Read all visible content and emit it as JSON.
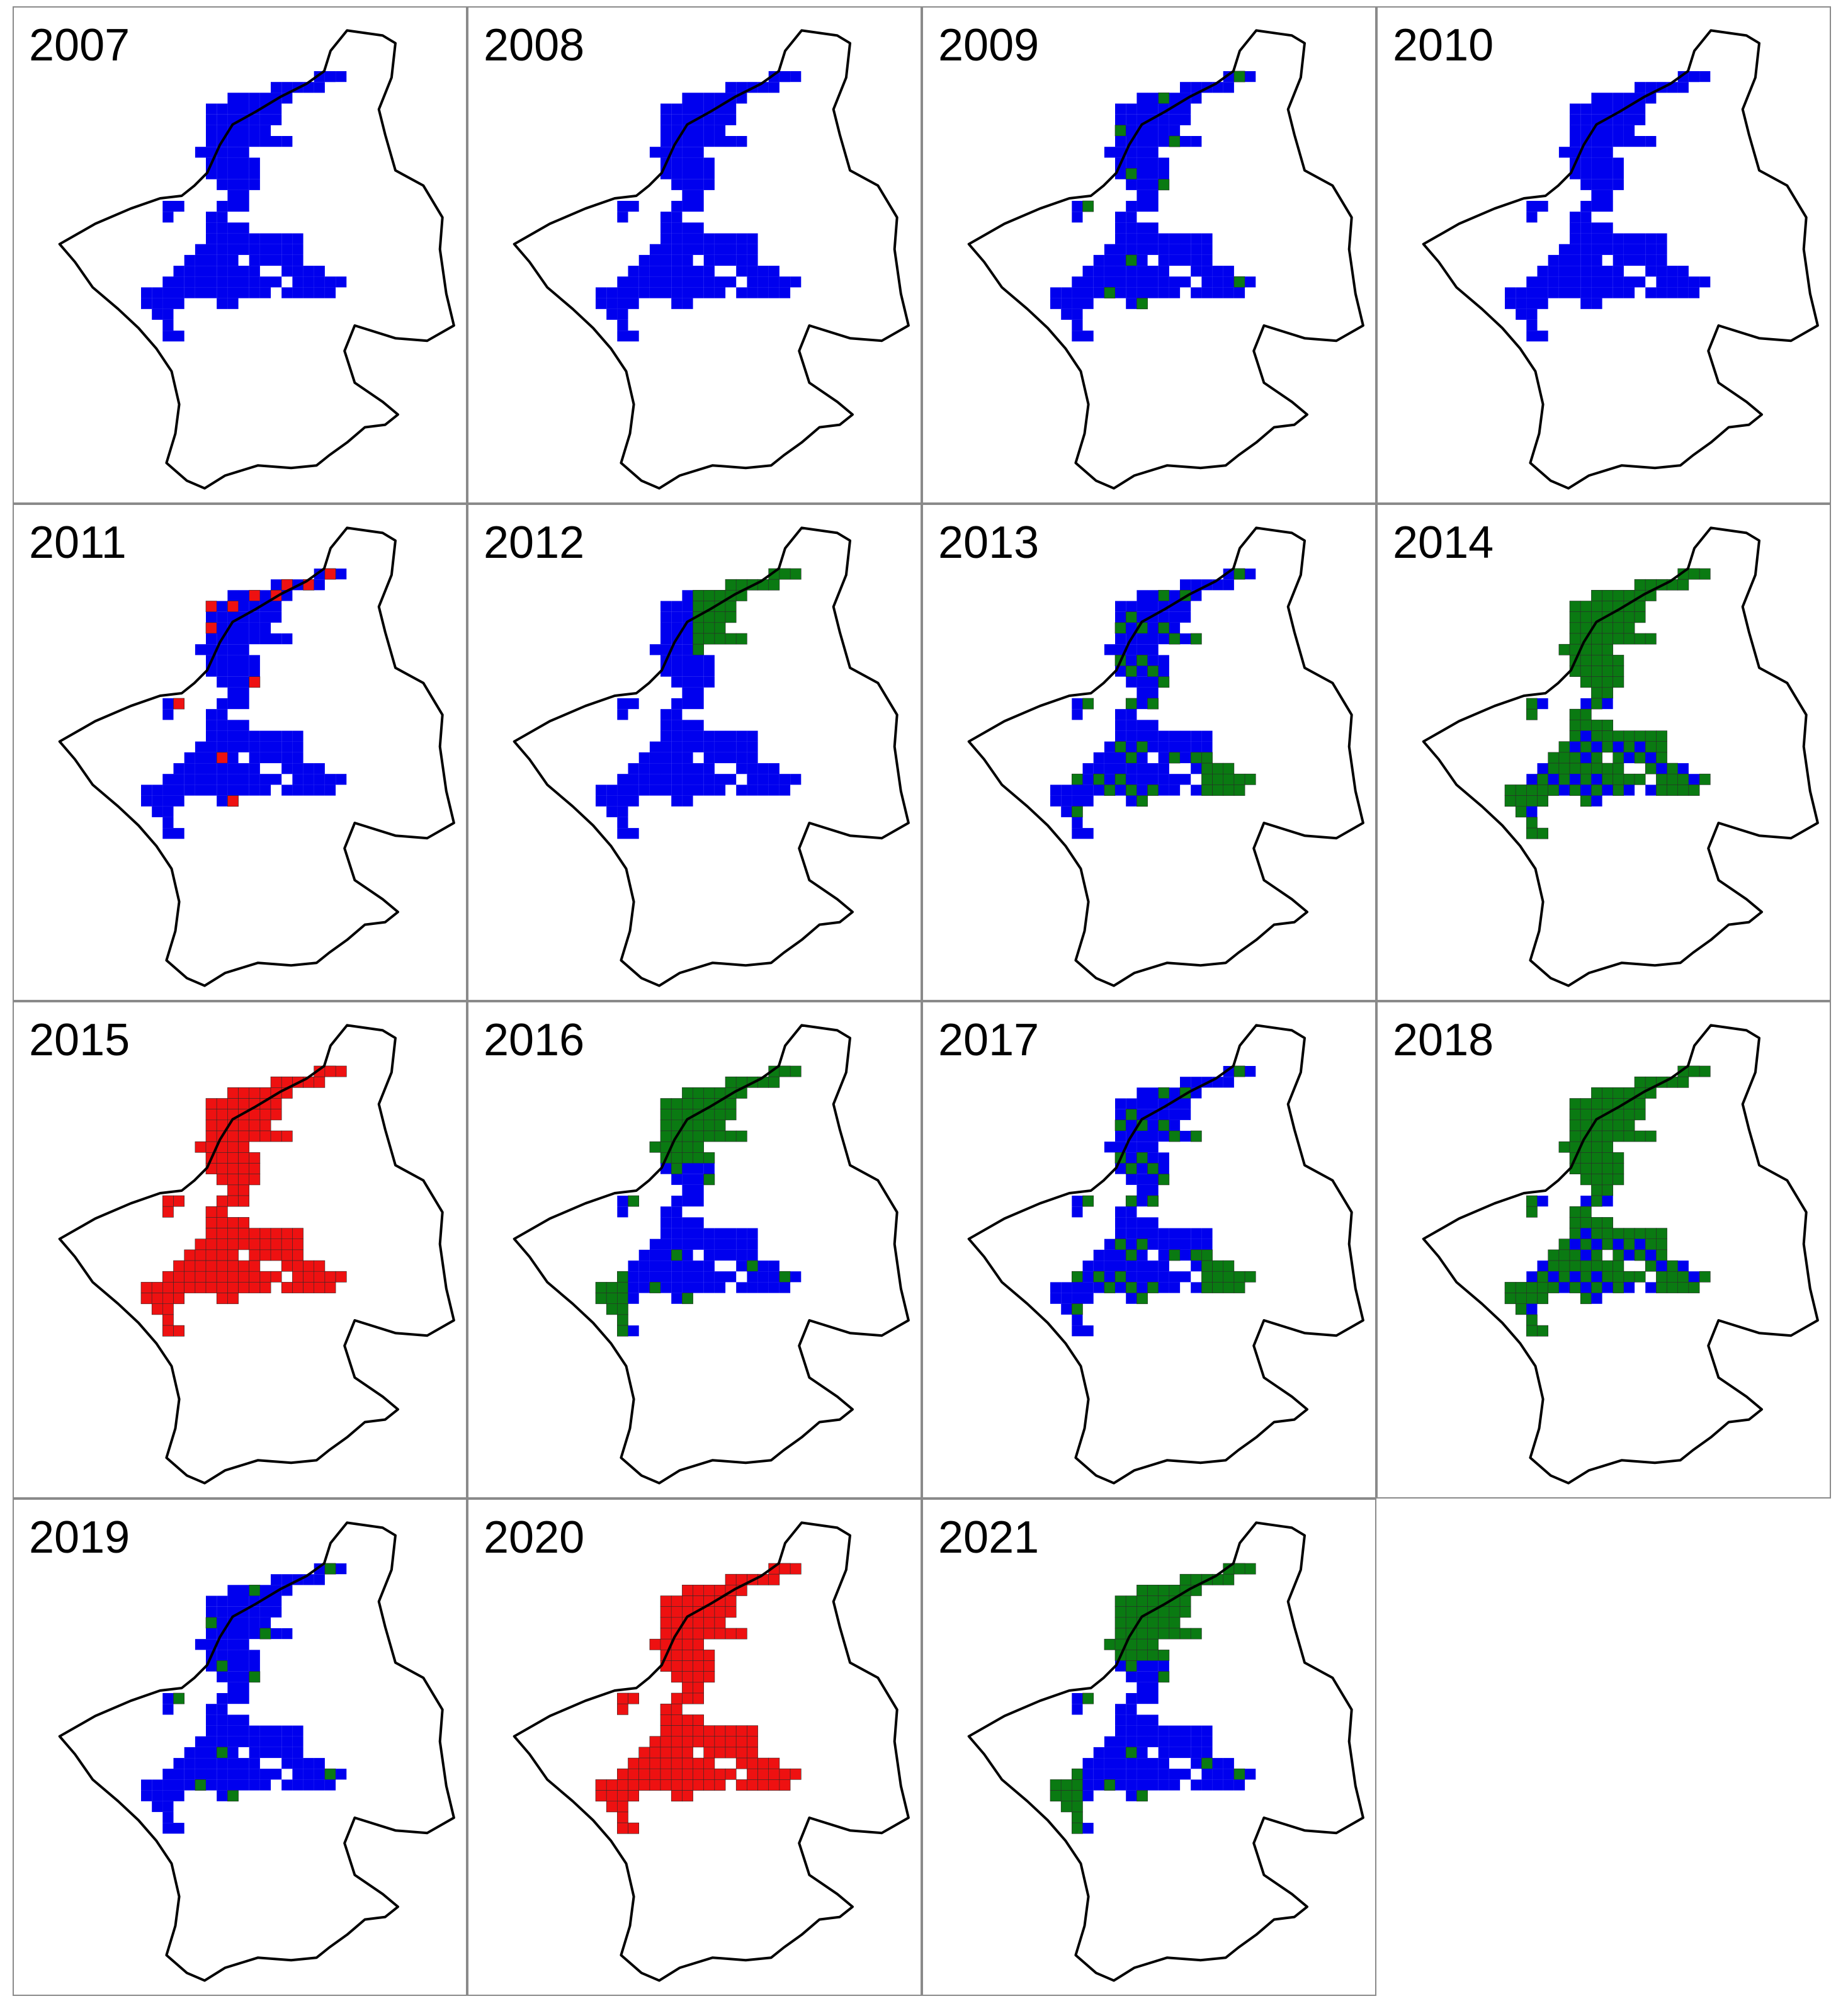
{
  "figure": {
    "colors": {
      "blue": "#0000ee",
      "green": "#0a7a12",
      "red": "#ee1111",
      "outline": "#000000",
      "panel_border": "#8a8a8a"
    },
    "panels": [
      {
        "year": "2007",
        "scheme": "blue"
      },
      {
        "year": "2008",
        "scheme": "blue"
      },
      {
        "year": "2009",
        "scheme": "blue_few_green"
      },
      {
        "year": "2010",
        "scheme": "blue"
      },
      {
        "year": "2011",
        "scheme": "blue_few_red"
      },
      {
        "year": "2012",
        "scheme": "blue_green_ne"
      },
      {
        "year": "2013",
        "scheme": "blue_green_mixed"
      },
      {
        "year": "2014",
        "scheme": "mostly_green"
      },
      {
        "year": "2015",
        "scheme": "red"
      },
      {
        "year": "2016",
        "scheme": "blue_green_north"
      },
      {
        "year": "2017",
        "scheme": "blue_green_mixed"
      },
      {
        "year": "2018",
        "scheme": "mostly_green"
      },
      {
        "year": "2019",
        "scheme": "blue_few_green"
      },
      {
        "year": "2020",
        "scheme": "red"
      },
      {
        "year": "2021",
        "scheme": "blue_green_north"
      }
    ]
  }
}
